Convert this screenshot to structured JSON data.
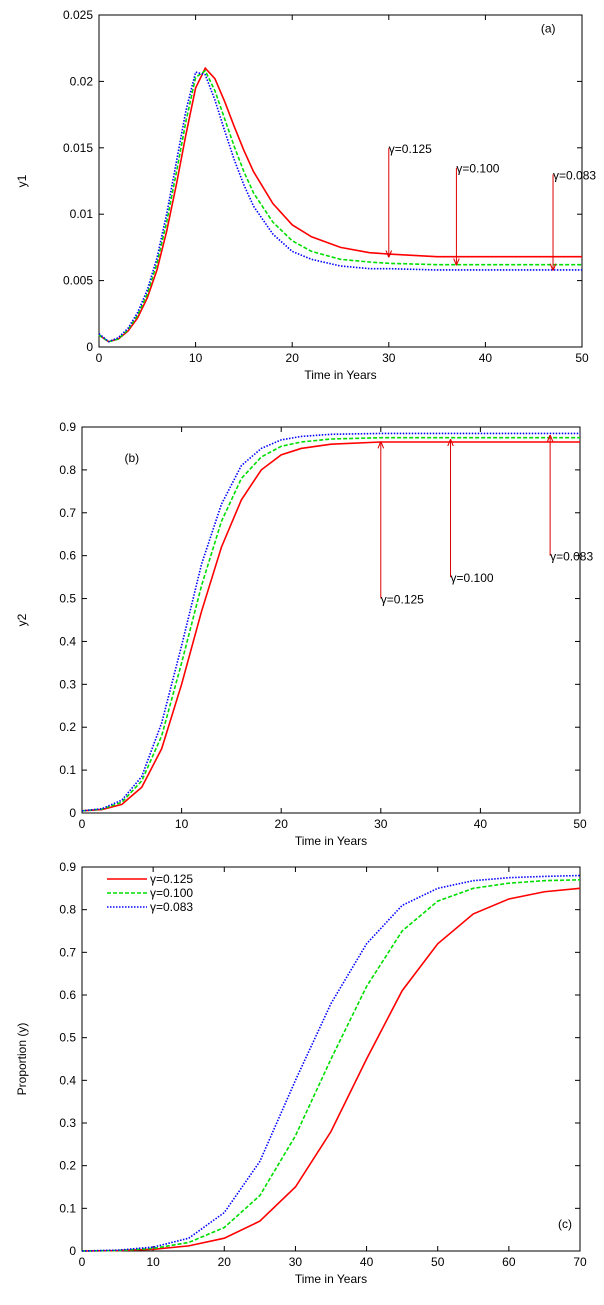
{
  "chart_data": [
    {
      "type": "line",
      "panel_label": "(a)",
      "x_label": "Time in Years",
      "y_label": "y1",
      "xlim": [
        0,
        50
      ],
      "xticks": [
        0,
        10,
        20,
        30,
        40,
        50
      ],
      "ylim": [
        0,
        0.025
      ],
      "yticks": [
        0,
        0.005,
        0.01,
        0.015,
        0.02,
        0.025
      ],
      "x": [
        0,
        1,
        2,
        3,
        4,
        5,
        6,
        7,
        8,
        9,
        10,
        11,
        12,
        13,
        14,
        15,
        16,
        18,
        20,
        22,
        25,
        28,
        30,
        35,
        40,
        45,
        50
      ],
      "series": [
        {
          "color": "#ff0000",
          "style": "solid",
          "values": [
            0.0009,
            0.0004,
            0.0006,
            0.0012,
            0.0022,
            0.0037,
            0.0058,
            0.0087,
            0.0122,
            0.016,
            0.0195,
            0.021,
            0.0202,
            0.0185,
            0.0166,
            0.0148,
            0.0132,
            0.0108,
            0.0092,
            0.0083,
            0.0075,
            0.0071,
            0.007,
            0.0068,
            0.0068,
            0.0068,
            0.0068
          ]
        },
        {
          "color": "#00dd00",
          "style": "dashed",
          "values": [
            0.0009,
            0.0004,
            0.0006,
            0.0013,
            0.0024,
            0.004,
            0.0063,
            0.0094,
            0.0131,
            0.017,
            0.0203,
            0.0208,
            0.0193,
            0.0172,
            0.0151,
            0.0132,
            0.0116,
            0.0094,
            0.008,
            0.0072,
            0.0066,
            0.0064,
            0.0063,
            0.0062,
            0.0062,
            0.0062,
            0.0062
          ]
        },
        {
          "color": "#0000ff",
          "style": "dotted",
          "values": [
            0.001,
            0.0004,
            0.0007,
            0.0014,
            0.0026,
            0.0043,
            0.0067,
            0.01,
            0.0139,
            0.0178,
            0.0207,
            0.0205,
            0.0186,
            0.0163,
            0.0141,
            0.0122,
            0.0106,
            0.0085,
            0.0072,
            0.0066,
            0.0061,
            0.0059,
            0.0059,
            0.0058,
            0.0058,
            0.0058,
            0.0058
          ]
        }
      ],
      "annotations": [
        {
          "text": "γ=0.125",
          "x": 30,
          "y": 0.015,
          "arrow_y": 0.0068
        },
        {
          "text": "γ=0.100",
          "x": 37,
          "y": 0.0135,
          "arrow_y": 0.0062
        },
        {
          "text": "γ=0.083",
          "x": 47,
          "y": 0.013,
          "arrow_y": 0.0058
        }
      ]
    },
    {
      "type": "line",
      "panel_label": "(b)",
      "x_label": "Time in Years",
      "y_label": "y2",
      "xlim": [
        0,
        50
      ],
      "xticks": [
        0,
        10,
        20,
        30,
        40,
        50
      ],
      "ylim": [
        0,
        0.9
      ],
      "yticks": [
        0,
        0.1,
        0.2,
        0.3,
        0.4,
        0.5,
        0.6,
        0.7,
        0.8,
        0.9
      ],
      "x": [
        0,
        2,
        4,
        6,
        8,
        10,
        12,
        14,
        16,
        18,
        20,
        22,
        25,
        30,
        35,
        40,
        45,
        50
      ],
      "series": [
        {
          "color": "#ff0000",
          "style": "solid",
          "values": [
            0.005,
            0.008,
            0.02,
            0.06,
            0.15,
            0.3,
            0.47,
            0.62,
            0.73,
            0.8,
            0.835,
            0.85,
            0.86,
            0.865,
            0.865,
            0.865,
            0.865,
            0.865
          ]
        },
        {
          "color": "#00dd00",
          "style": "dashed",
          "values": [
            0.005,
            0.009,
            0.025,
            0.075,
            0.18,
            0.35,
            0.53,
            0.68,
            0.78,
            0.83,
            0.855,
            0.865,
            0.872,
            0.875,
            0.875,
            0.875,
            0.875,
            0.875
          ]
        },
        {
          "color": "#0000ff",
          "style": "dotted",
          "values": [
            0.005,
            0.01,
            0.03,
            0.085,
            0.21,
            0.39,
            0.58,
            0.72,
            0.81,
            0.85,
            0.87,
            0.878,
            0.883,
            0.885,
            0.885,
            0.885,
            0.885,
            0.885
          ]
        }
      ],
      "annotations": [
        {
          "text": "γ=0.125",
          "x": 30,
          "y": 0.5,
          "arrow_y": 0.865
        },
        {
          "text": "γ=0.100",
          "x": 37,
          "y": 0.55,
          "arrow_y": 0.87
        },
        {
          "text": "γ=0.083",
          "x": 47,
          "y": 0.6,
          "arrow_y": 0.88
        }
      ]
    },
    {
      "type": "line",
      "panel_label": "(c)",
      "x_label": "Time in Years",
      "y_label": "Proportion (y)",
      "xlim": [
        0,
        70
      ],
      "xticks": [
        0,
        10,
        20,
        30,
        40,
        50,
        60,
        70
      ],
      "ylim": [
        0,
        0.9
      ],
      "yticks": [
        0,
        0.1,
        0.2,
        0.3,
        0.4,
        0.5,
        0.6,
        0.7,
        0.8,
        0.9
      ],
      "legend": "upper left",
      "x": [
        0,
        5,
        10,
        15,
        20,
        25,
        30,
        35,
        40,
        45,
        50,
        55,
        60,
        65,
        70
      ],
      "series": [
        {
          "name": "γ=0.125",
          "color": "#ff0000",
          "style": "solid",
          "values": [
            0,
            0.001,
            0.004,
            0.012,
            0.03,
            0.07,
            0.15,
            0.28,
            0.45,
            0.61,
            0.72,
            0.79,
            0.825,
            0.842,
            0.85
          ]
        },
        {
          "name": "γ=0.100",
          "color": "#00dd00",
          "style": "dashed",
          "values": [
            0,
            0.001,
            0.006,
            0.02,
            0.055,
            0.13,
            0.27,
            0.45,
            0.62,
            0.75,
            0.82,
            0.85,
            0.862,
            0.868,
            0.87
          ]
        },
        {
          "name": "γ=0.083",
          "color": "#0000ff",
          "style": "dotted",
          "values": [
            0,
            0.002,
            0.009,
            0.03,
            0.09,
            0.21,
            0.4,
            0.58,
            0.72,
            0.81,
            0.85,
            0.868,
            0.875,
            0.878,
            0.88
          ]
        }
      ]
    }
  ]
}
